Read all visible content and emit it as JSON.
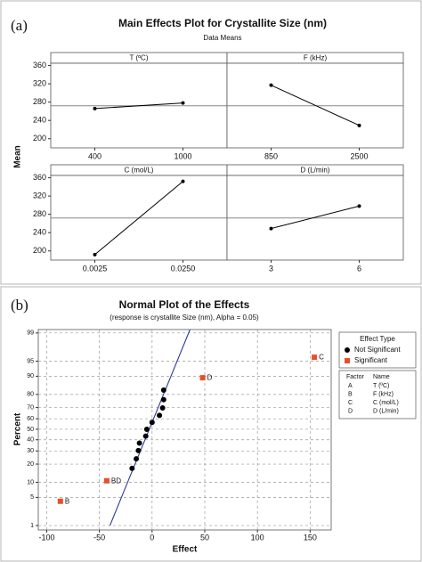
{
  "chart_data": [
    {
      "type": "main_effects",
      "panel_label": "(a)",
      "title": "Main Effects Plot for Crystallite Size (nm)",
      "subtitle": "Data Means",
      "ylabel": "Mean",
      "ylim": [
        180,
        365
      ],
      "yticks": [
        200,
        240,
        280,
        320,
        360
      ],
      "reference_line": 272,
      "color": "#000000",
      "panels": [
        {
          "title": "T (ºC)",
          "categories": [
            "400",
            "1000"
          ],
          "values": [
            266,
            278
          ]
        },
        {
          "title": "F (kHz)",
          "categories": [
            "850",
            "2500"
          ],
          "values": [
            317,
            229
          ]
        },
        {
          "title": "C (mol/L)",
          "categories": [
            "0.0025",
            "0.0250"
          ],
          "values": [
            192,
            352
          ]
        },
        {
          "title": "D (L/min)",
          "categories": [
            "3",
            "6"
          ],
          "values": [
            249,
            298
          ]
        }
      ]
    },
    {
      "type": "normal_probability",
      "panel_label": "(b)",
      "title": "Normal Plot of the Effects",
      "subtitle": "(response is crystallite Size (nm), Alpha = 0.05)",
      "xlabel": "Effect",
      "ylabel": "Percent",
      "xlim": [
        -108,
        170
      ],
      "xticks": [
        -100,
        -50,
        0,
        50,
        100,
        150
      ],
      "yscale": "normal probability",
      "ylim": [
        0.75,
        99.2
      ],
      "yticks": [
        1,
        5,
        10,
        20,
        30,
        40,
        50,
        60,
        70,
        80,
        90,
        95,
        99
      ],
      "grid": true,
      "fit_line": {
        "x": [
          -40,
          36
        ],
        "y": [
          1,
          99.2
        ],
        "color": "#2b3a9a"
      },
      "series": [
        {
          "name": "Not Significant",
          "color": "#000000",
          "marker": "circle",
          "x": [
            -19,
            -15,
            -13,
            -12,
            -6,
            -5,
            0,
            7,
            10,
            11,
            11
          ],
          "values": [
            17.21,
            23.77,
            30.33,
            36.89,
            43.44,
            50,
            56.56,
            63.11,
            69.67,
            76.23,
            82.79
          ]
        },
        {
          "name": "Significant",
          "color": "#e8502a",
          "marker": "square",
          "x": [
            -87,
            -43,
            48,
            154
          ],
          "values": [
            4.1,
            10.66,
            89.34,
            95.9
          ],
          "labels": [
            "B",
            "BD",
            "D",
            "C"
          ]
        }
      ],
      "legend": {
        "title": "Effect Type",
        "position": "right"
      },
      "factor_table": {
        "header": [
          "Factor",
          "Name"
        ],
        "rows": [
          [
            "A",
            "T (ºC)"
          ],
          [
            "B",
            "F (kHz)"
          ],
          [
            "C",
            "C (mol/L)"
          ],
          [
            "D",
            "D (L/min)"
          ]
        ]
      }
    }
  ]
}
